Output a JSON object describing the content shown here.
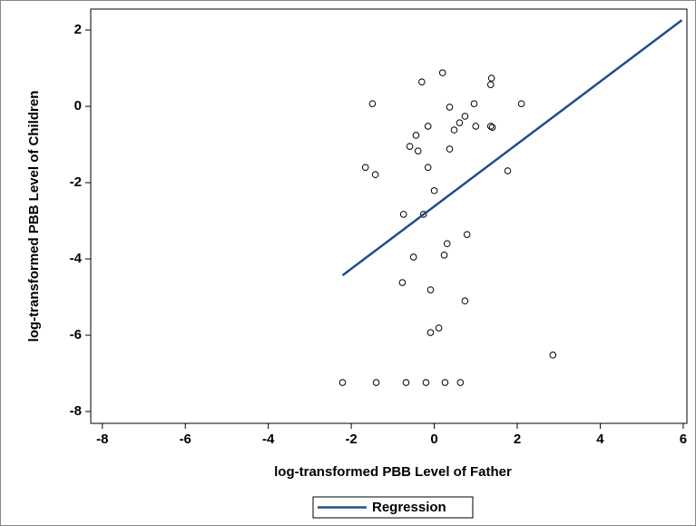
{
  "chart_data": {
    "type": "scatter",
    "xlabel": "log-transformed PBB Level of Father",
    "ylabel": "log-transformed PBB Level of Children",
    "xlim": [
      -8.28,
      6.09
    ],
    "ylim": [
      -8.31,
      2.55
    ],
    "xticks": [
      -8,
      -6,
      -4,
      -2,
      0,
      2,
      4,
      6
    ],
    "yticks": [
      2,
      0,
      -2,
      -4,
      -6,
      -8
    ],
    "marker_color": "#000000",
    "x": [
      0.2,
      -0.3,
      1.38,
      1.36,
      -1.49,
      2.1,
      0.37,
      0.96,
      0.74,
      0.61,
      -0.15,
      1.0,
      1.36,
      1.4,
      0.48,
      -0.44,
      -0.59,
      -0.39,
      0.37,
      -1.66,
      -1.42,
      -0.15,
      1.77,
      0,
      -0.74,
      -0.26,
      0.79,
      0.31,
      0.24,
      -0.5,
      -0.77,
      -0.09,
      0.74,
      0.11,
      -0.09,
      2.86,
      -2.21,
      -1.4,
      -0.68,
      -0.2,
      0.26,
      0.63
    ],
    "values": [
      0.88,
      0.64,
      0.74,
      0.57,
      0.07,
      0.07,
      -0.02,
      0.07,
      -0.26,
      -0.43,
      -0.52,
      -0.52,
      -0.52,
      -0.55,
      -0.62,
      -0.76,
      -1.05,
      -1.17,
      -1.12,
      -1.6,
      -1.79,
      -1.6,
      -1.69,
      -2.21,
      -2.83,
      -2.83,
      -3.36,
      -3.6,
      -3.9,
      -3.95,
      -4.62,
      -4.81,
      -5.1,
      -5.81,
      -5.93,
      -6.52,
      -7.24,
      -7.24,
      -7.24,
      -7.24,
      -7.24,
      -7.24
    ],
    "regression": {
      "name": "Regression",
      "color": "#1f4e8c",
      "x": [
        -2.21,
        5.97
      ],
      "values": [
        -4.43,
        2.26
      ]
    }
  }
}
